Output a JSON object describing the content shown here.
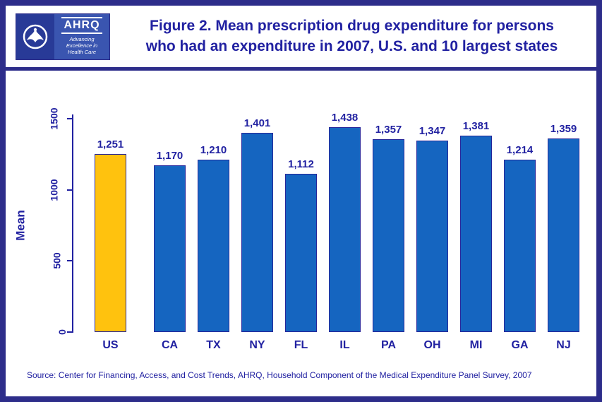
{
  "header": {
    "title_line1": "Figure 2. Mean prescription drug expenditure for persons",
    "title_line2": "who had an expenditure in 2007, U.S. and 10 largest states",
    "logo": {
      "org": "AHRQ",
      "tagline": "Advancing\nExcellence in\nHealth Care"
    }
  },
  "chart_data": {
    "type": "bar",
    "categories": [
      "US",
      "CA",
      "TX",
      "NY",
      "FL",
      "IL",
      "PA",
      "OH",
      "MI",
      "GA",
      "NJ"
    ],
    "values": [
      1251,
      1170,
      1210,
      1401,
      1112,
      1438,
      1357,
      1347,
      1381,
      1214,
      1359
    ],
    "value_labels": [
      "1,251",
      "1,170",
      "1,210",
      "1,401",
      "1,112",
      "1,438",
      "1,357",
      "1,347",
      "1,381",
      "1,214",
      "1,359"
    ],
    "title": "Figure 2. Mean prescription drug expenditure for persons who had an expenditure in 2007, U.S. and 10 largest states",
    "xlabel": "",
    "ylabel": "Mean",
    "yticks": [
      0,
      500,
      1000,
      1500
    ],
    "ylim": [
      0,
      1500
    ],
    "grid": false,
    "legend": "none",
    "highlight_category": "US",
    "bar_color": "#1565C0",
    "highlight_color": "#FFC20E"
  },
  "source": "Source: Center for Financing, Access, and Cost Trends, AHRQ, Household Component of the Medical Expenditure Panel Survey, 2007",
  "colors": {
    "navy_text": "#2121A1",
    "border_navy": "#2D2D8A",
    "bar_blue": "#1565C0",
    "bar_gold": "#FFC20E"
  }
}
